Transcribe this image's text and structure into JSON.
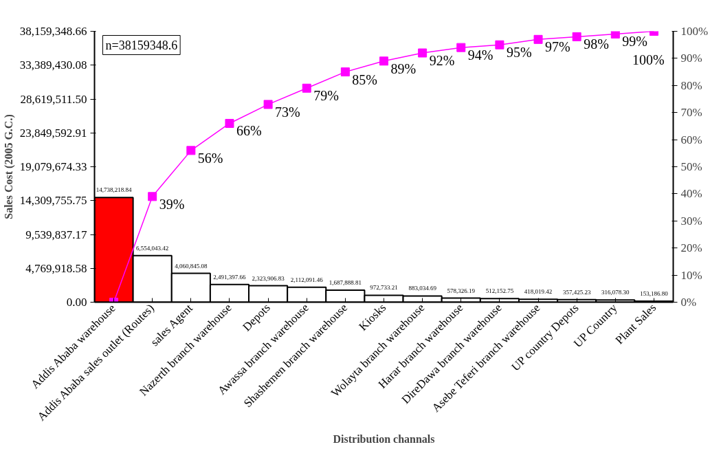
{
  "chart_data": {
    "type": "bar",
    "xlabel": "Distribution channals",
    "ylabel": "Sales Cost (2005 G.C.)",
    "annotations": [
      "n=38159348.6"
    ],
    "categories": [
      "Addis Ababa warehouse",
      "Addis Ababa sales outlet (Routes)",
      "sales Agent",
      "Nazerth branch warehouse",
      "Depots",
      "Awassa branch warehouse",
      "Shashemen branch warehouse",
      "Kiosks",
      "Wolayta branch warehouse",
      "Harar branch warehouse",
      "DireDawa branch warehouse",
      "Asebe Teferi branch warehouse",
      "UP country Depots",
      "UP Country",
      "Plant Sales"
    ],
    "ylim": [
      0,
      38159348.66
    ],
    "yticks": [
      {
        "value": 0,
        "label": "0.00"
      },
      {
        "value": 4769918.58,
        "label": "4,769,918.58"
      },
      {
        "value": 9539837.17,
        "label": "9,539,837.17"
      },
      {
        "value": 14309755.75,
        "label": "14,309,755.75"
      },
      {
        "value": 19079674.33,
        "label": "19,079,674.33"
      },
      {
        "value": 23849592.91,
        "label": "23,849,592.91"
      },
      {
        "value": 28619511.5,
        "label": "28,619,511.50"
      },
      {
        "value": 33389430.08,
        "label": "33,389,430.08"
      },
      {
        "value": 38159348.66,
        "label": "38,159,348.66"
      }
    ],
    "y2lim": [
      0,
      100
    ],
    "y2ticks": [
      {
        "value": 0,
        "label": "0%"
      },
      {
        "value": 10,
        "label": "10%"
      },
      {
        "value": 20,
        "label": "20%"
      },
      {
        "value": 30,
        "label": "30%"
      },
      {
        "value": 40,
        "label": "40%"
      },
      {
        "value": 50,
        "label": "50%"
      },
      {
        "value": 60,
        "label": "60%"
      },
      {
        "value": 70,
        "label": "70%"
      },
      {
        "value": 80,
        "label": "80%"
      },
      {
        "value": 90,
        "label": "90%"
      },
      {
        "value": 100,
        "label": "100%"
      }
    ],
    "series": [
      {
        "colors": [
          "#ff0000",
          "#ffffff",
          "#ffffff",
          "#ffffff",
          "#ffffff",
          "#ffffff",
          "#ffffff",
          "#ffffff",
          "#ffffff",
          "#ffffff",
          "#ffffff",
          "#ffffff",
          "#ffffff",
          "#ffffff",
          "#ffffff"
        ],
        "values": [
          14738218.84,
          6554043.42,
          4060845.08,
          2491397.66,
          2323906.83,
          2112091.46,
          1687888.81,
          972733.21,
          883034.69,
          578326.19,
          512152.75,
          418019.42,
          357425.23,
          316078.3,
          153186.8
        ],
        "value_labels": [
          "14,738,218.84",
          "6,554,043.42",
          "4,060,845.08",
          "2,491,397.66",
          "2,323,906.83",
          "2,112,091.46",
          "1,687,888.81",
          "972,733.21",
          "883,034.69",
          "578,326.19",
          "512,152.75",
          "418,019.42",
          "357,425.23",
          "316,078.30",
          "153,186.80"
        ]
      },
      {
        "type": "line",
        "axis": "y2",
        "color": "#ff00ff",
        "marker": "square",
        "values": [
          0,
          39,
          56,
          66,
          73,
          79,
          85,
          89,
          92,
          94,
          95,
          97,
          98,
          99,
          100
        ],
        "value_labels": [
          null,
          "39%",
          "56%",
          "66%",
          "73%",
          "79%",
          "85%",
          "89%",
          "92%",
          "94%",
          "95%",
          "97%",
          "98%",
          "99%",
          "100%"
        ]
      }
    ],
    "grid": false
  }
}
